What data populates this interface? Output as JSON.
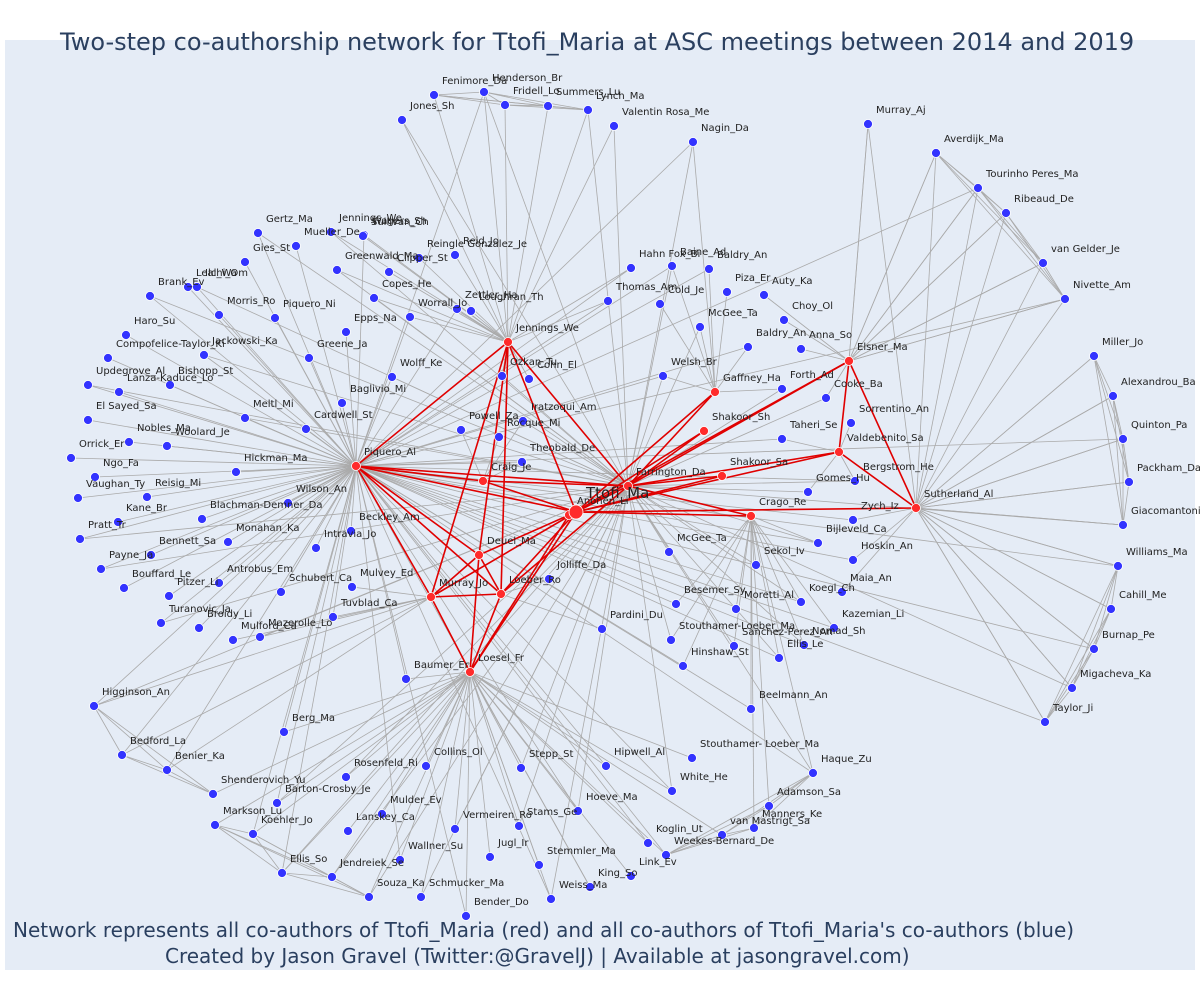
{
  "title": "Two-step co-authorship network for Ttofi_Maria at ASC meetings between 2014 and 2019",
  "footer": {
    "line1": "Network represents all co-authors of Ttofi_Maria (red) and all co-authors of Ttofi_Maria's co-authors (blue)",
    "line2": "Created by Jason Gravel (Twitter:@GravelJ) | Available at jasongravel.com)"
  },
  "colors": {
    "focal": "#ff2b2b",
    "coauthor": "#ff2b2b",
    "second_degree": "#3333ff",
    "edge_red": "#e00000",
    "edge_grey": "#aaaaaa",
    "background": "#e5ecf6",
    "text": "#2a3f5f"
  },
  "network": {
    "focal": "Ttofi_Ma",
    "coauthors": [
      "Piquero_Al",
      "Jennings_We",
      "Elsner_Ma",
      "Gaffney_Ha",
      "Shakoor_Sh",
      "Farrington_Da",
      "Shakoor_Sa",
      "Valdebenito_Sa",
      "Crago_Re",
      "Sutherland_Al",
      "Craig_Je",
      "Anonen_Li",
      "Deuel_Ma",
      "Murray_Jo",
      "Loeber_Ro",
      "Loesel_Fr"
    ],
    "second_degree": [
      "Fenimore_Da",
      "Henderson_Br",
      "Fridell_Lo",
      "Summers_Lu",
      "Lynch_Ma",
      "Valentin Rosa_Me",
      "Nagin_Da",
      "Murray_Aj",
      "Jones_Sh",
      "Averdijk_Ma",
      "Tourinho Peres_Ma",
      "Ribeaud_De",
      "van Gelder_Je",
      "Nivette_Am",
      "Gertz_Ma",
      "Wagers_Sh",
      "Sullivan_Ch",
      "Mueller_De",
      "Jennings_We2",
      "Reid_Jo",
      "Reingle Gonzalez_Je",
      "Gies_St",
      "Clipper_St",
      "Greenwald_Ma",
      "Ilchi_Om",
      "Copes_He",
      "Leal_Wa",
      "Zettler_Ha",
      "Loughran_Th",
      "Brank_Ev",
      "Morris_Ro",
      "Piquero_Ni",
      "Worrall_Jo",
      "Hahn Fox_Bi",
      "Baine_Ad",
      "Baldry_An",
      "Piza_Er",
      "Auty_Ka",
      "Thomas_Am",
      "Cold_Je",
      "Choy_Ol",
      "Haro_Su",
      "Compofelice-Taylor_Ki",
      "Jackowski_Ka",
      "Epps_Na",
      "McGee_Ta",
      "Baldry_An2",
      "Anna_So",
      "Greene_Ja",
      "Ozkan_Tu",
      "Cohn_El",
      "Updegrove_Al",
      "Bishopp_St",
      "Lanza-Kaduce_Lo",
      "Wolff_Ke",
      "Baglivio_Mi",
      "Welsh_Br",
      "Forth_Ad",
      "Cooke_Ba",
      "El Sayed_Sa",
      "Meltl_Mi",
      "Cardwell_St",
      "Iratzoqui_Am",
      "Sorrentino_An",
      "Nobles_Ma",
      "Woolard_Je",
      "Powell_Za",
      "Rocque_Mi",
      "Taheri_Se",
      "Orrick_Er",
      "Hickman_Ma",
      "Theobald_De",
      "Ngo_Fa",
      "Vaughan_Ty",
      "Reisig_Mi",
      "Wilson_An",
      "Gomes_Hu",
      "Bergstrom_He",
      "Blachman-Demner_Da",
      "Kane_Br",
      "Beckley_Am",
      "Zych_Iz",
      "Pratt_Tr",
      "Bennett_Sa",
      "Monahan_Ka",
      "Intravia_Jo",
      "McGee_Ta2",
      "Bijleveld_Ca",
      "Hoskin_An",
      "Payne_Ja",
      "Bouffard_Le",
      "Antrobus_Em",
      "Mulvey_Ed",
      "Jolliffe_Da",
      "Sekol_Iv",
      "Pitzer_Li",
      "Schubert_Ca",
      "Maia_An",
      "Turanovic_Ja",
      "Tuvblad_Ca",
      "Besemer_Sy",
      "Moretti_Al",
      "Koegl_Ch",
      "Broidy_Li",
      "Mulford_Ca",
      "Mazerolle_Lo",
      "Kazemian_Li",
      "Pardini_Du",
      "Stouthamer-Loeber_Ma",
      "Sanchez-Perez_An",
      "Nomad_Sh",
      "Hinshaw_St",
      "Ellis_Le",
      "Baumer_Er",
      "Higginson_An",
      "Beelmann_An",
      "Berg_Ma",
      "Bedford_La",
      "Benier_Ka",
      "Stouthamer- Loeber_Ma",
      "Collins_Ol",
      "Stepp_St",
      "Hipwell_Al",
      "Haque_Zu",
      "Rosenfeld_Ri",
      "White_He",
      "Shenderovich_Yu",
      "Barton-Crosby_Je",
      "Adamson_Sa",
      "Markson_Lu",
      "Mulder_Ev",
      "Hoeve_Ma",
      "Manners_Ke",
      "Koehler_Jo",
      "Lanskey_Ca",
      "Vermeiren_Ro",
      "Stams_Ge",
      "van Mastrigt_Sa",
      "Weekes-Bernard_De",
      "Koglin_Ut",
      "Jugl_Ir",
      "Ellis_So",
      "Wallner_Su",
      "Stemmler_Ma",
      "Link_Ev",
      "Jendreiek_Se",
      "Souza_Ka",
      "Schmucker_Ma",
      "King_So",
      "Weiss_Ma",
      "Bender_Do",
      "Miller_Jo",
      "Alexandrou_Ba",
      "Quinton_Pa",
      "Packham_Da",
      "Giacomantonio_Ch",
      "Williams_Ma",
      "Cahill_Me",
      "Burnap_Pe",
      "Migacheva_Ka",
      "Taylor_Ji"
    ]
  }
}
